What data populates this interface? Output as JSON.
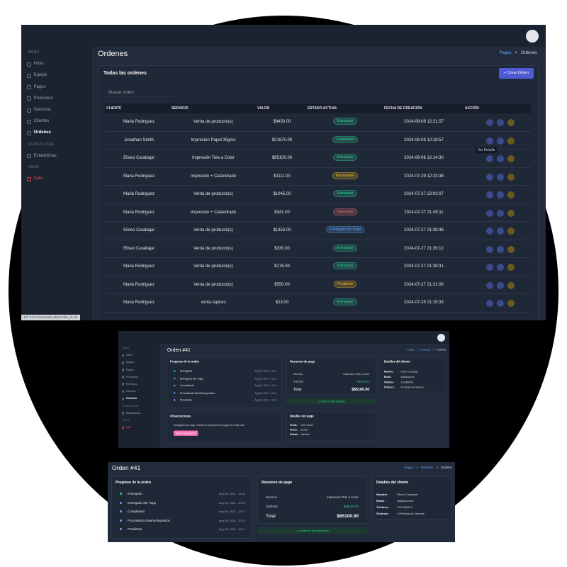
{
  "sidebar": {
    "sections": [
      {
        "label": "MENU",
        "items": [
          "Inicio",
          "Equipo",
          "Pagos",
          "Productos",
          "Servicios",
          "Clientes",
          "Ordenes"
        ]
      },
      {
        "label": "ESTADISTICAS",
        "items": [
          "Estadisticas"
        ]
      },
      {
        "label": "SALIR",
        "items": [
          "Salir"
        ]
      }
    ]
  },
  "orders_page": {
    "title": "Ordenes",
    "breadcrumb": [
      "Pagos",
      ">",
      "Ordenes"
    ],
    "card_title": "Todas las ordenes",
    "create_button": "+ Crear Orden",
    "search_placeholder": "Buscar orden",
    "tooltip": "Ver Detalle",
    "table": {
      "headers": [
        "CLIENTE",
        "SERVICIO",
        "VALOR",
        "ESTADO ACTUAL",
        "FECHA DE CREACIÓN",
        "ACCIÓN"
      ],
      "rows": [
        [
          "Maria Rodriguez",
          "Venta de producto(s)",
          "$9450.00",
          "Entregado",
          "2024-08-08 12:21:57"
        ],
        [
          "Jonathan Smith",
          "Impresión Papel 35gms",
          "$21670.00",
          "Completado",
          "2024-08-08 12:18:57"
        ],
        [
          "Eliseo Carabajal",
          "Impresión Tela a Color",
          "$85100.00",
          "Entregado",
          "2024-08-08 12:14:30"
        ],
        [
          "Maria Rodriguez",
          "Impresión + Calandrado",
          "$1111.00",
          "Procesando",
          "2024-07-29 12:23:38"
        ],
        [
          "Maria Rodriguez",
          "Venta de producto(s)",
          "$1045.00",
          "Entregado",
          "2024-07-27 22:03:07"
        ],
        [
          "Maria Rodriguez",
          "Impresión + Calandrado",
          "$341.00",
          "Cancelado",
          "2024-07-27 21:45:11"
        ],
        [
          "Eliseo Carabajal",
          "Venta de producto(s)",
          "$1353.00",
          "Entregado Sin Pago",
          "2024-07-27 21:38:48"
        ],
        [
          "Eliseo Carabajal",
          "Venta de producto(s)",
          "$330.00",
          "Entregado",
          "2024-07-27 21:39:12"
        ],
        [
          "Maria Rodriguez",
          "Venta de producto(s)",
          "$176.00",
          "Entregado",
          "2024-07-27 21:38:31"
        ],
        [
          "Maria Rodriguez",
          "Venta de producto(s)",
          "$550.00",
          "Pendiente",
          "2024-07-27 21:31:06"
        ],
        [
          "Maria Rodriguez",
          "venta lapices",
          "$23.00",
          "Entregado",
          "2024-07-25 21:15:33"
        ]
      ],
      "status_colors": [
        "#34d399",
        "#34d399",
        "#34d399",
        "#fbbf24",
        "#34d399",
        "#f87171",
        "#60a5fa",
        "#34d399",
        "#34d399",
        "#fbbf24",
        "#34d399"
      ]
    }
  },
  "status_url": "127.0.0.1/aseo/order.php?order_id=41",
  "order_detail": {
    "title": "Orden #41",
    "breadcrumb": [
      "Pagos",
      ">",
      "Ordenes",
      ">",
      "Detalles"
    ],
    "progress": {
      "title": "Progreso de la orden",
      "items": [
        {
          "label": "Entregado",
          "date": "Aug 08, 2024 - 12:33"
        },
        {
          "label": "Entregado Sin Pago",
          "date": "Aug 08, 2024 - 12:16"
        },
        {
          "label": "Completado",
          "date": "Aug 08, 2024 - 12:16"
        },
        {
          "label": "Procesando Diseño/Impresión",
          "date": "Aug 08, 2024 - 12:16"
        },
        {
          "label": "Pendiente",
          "date": "Aug 08, 2024 - 12:14"
        }
      ]
    },
    "summary": {
      "title": "Resumen de pago",
      "rows": [
        [
          "Servicio",
          "Impresión Tela a Color"
        ],
        [
          "Subtotal",
          "$85100.00"
        ]
      ],
      "total_label": "Total",
      "total": "$85100.00",
      "notice": "La orden ha sido abonada"
    },
    "client": {
      "title": "Detalles del cliente",
      "rows": [
        [
          "Nombre :",
          "Eliseo Carabajal"
        ],
        [
          "Email :",
          "eli@aaa.com"
        ],
        [
          "Teléfono :",
          "1123456421"
        ],
        [
          "Órdenes :",
          "4 Pedidos de órdenes"
        ]
      ]
    },
    "notes": {
      "title": "Observaciones",
      "text": "Entregando sin pago. Cliente se compromete a pagar en 3 días más.",
      "button": "Editar Observación"
    },
    "payment": {
      "title": "Detalles del pago",
      "rows": [
        [
          "Fecha :",
          "2024-08-08"
        ],
        [
          "Precio :",
          "85100"
        ],
        [
          "Estado :",
          "Aplicado"
        ]
      ]
    }
  }
}
